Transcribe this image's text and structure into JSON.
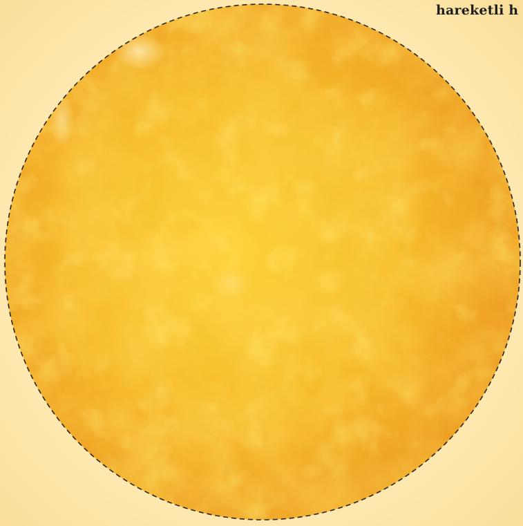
{
  "page": {
    "caption": "hareketli h"
  },
  "sun": {
    "colors": {
      "base": "#f6b233",
      "light": "#fcd23a",
      "dark": "#ea9420",
      "outline": "#2a2318"
    }
  }
}
